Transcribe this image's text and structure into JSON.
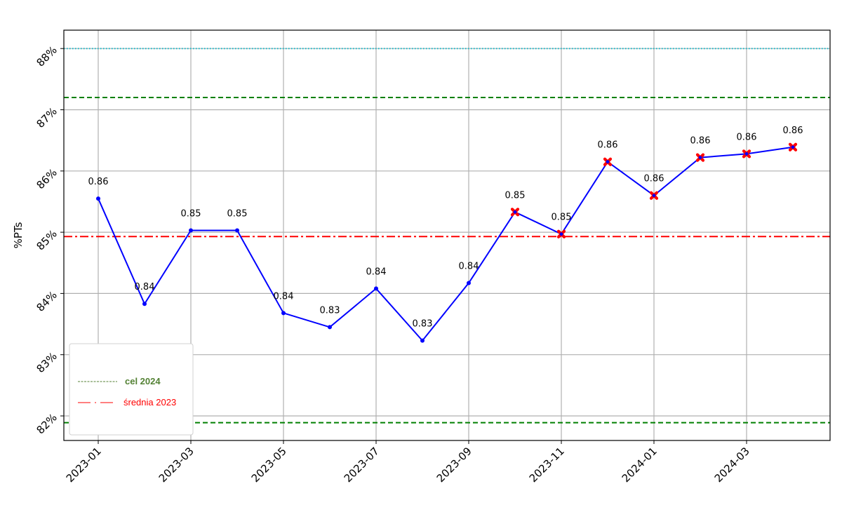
{
  "chart_data": {
    "type": "line",
    "ylabel": "%PTs",
    "ylim": [
      0.8175,
      0.8865
    ],
    "yticks": [
      {
        "value": 0.82,
        "label": "82%"
      },
      {
        "value": 0.83,
        "label": "83%"
      },
      {
        "value": 0.84,
        "label": "84%"
      },
      {
        "value": 0.85,
        "label": "85%"
      },
      {
        "value": 0.86,
        "label": "86%"
      },
      {
        "value": 0.87,
        "label": "87%"
      },
      {
        "value": 0.88,
        "label": "88%"
      }
    ],
    "xticks": [
      "2023-01",
      "2023-03",
      "2023-05",
      "2023-07",
      "2023-09",
      "2023-11",
      "2024-01",
      "2024-03"
    ],
    "grid": true,
    "series": [
      {
        "color": "#0000ff",
        "points": [
          {
            "x": "2023-01",
            "y": 0.8555,
            "label": "0.86",
            "marker": "dot"
          },
          {
            "x": "2023-02",
            "y": 0.8383,
            "label": "0.84",
            "marker": "dot"
          },
          {
            "x": "2023-03",
            "y": 0.8503,
            "label": "0.85",
            "marker": "dot"
          },
          {
            "x": "2023-04",
            "y": 0.8503,
            "label": "0.85",
            "marker": "dot"
          },
          {
            "x": "2023-05",
            "y": 0.8368,
            "label": "0.84",
            "marker": "dot"
          },
          {
            "x": "2023-06",
            "y": 0.8345,
            "label": "0.83",
            "marker": "dot"
          },
          {
            "x": "2023-07",
            "y": 0.8408,
            "label": "0.84",
            "marker": "dot"
          },
          {
            "x": "2023-08",
            "y": 0.8323,
            "label": "0.83",
            "marker": "dot"
          },
          {
            "x": "2023-09",
            "y": 0.8417,
            "label": "0.84",
            "marker": "dot"
          },
          {
            "x": "2023-10",
            "y": 0.8533,
            "label": "0.85",
            "marker": "x"
          },
          {
            "x": "2023-11",
            "y": 0.8497,
            "label": "0.85",
            "marker": "x"
          },
          {
            "x": "2023-12",
            "y": 0.8615,
            "label": "0.86",
            "marker": "x"
          },
          {
            "x": "2024-01",
            "y": 0.856,
            "label": "0.86",
            "marker": "x"
          },
          {
            "x": "2024-02",
            "y": 0.8622,
            "label": "0.86",
            "marker": "x"
          },
          {
            "x": "2024-03",
            "y": 0.8628,
            "label": "0.86",
            "marker": "x"
          },
          {
            "x": "2024-04",
            "y": 0.8639,
            "label": "0.86",
            "marker": "x"
          }
        ]
      }
    ],
    "reference_lines": [
      {
        "y": 0.88,
        "color": "#17becf",
        "style": "dotted"
      },
      {
        "y": 0.872,
        "color": "#008000",
        "style": "dashed"
      },
      {
        "y": 0.8493,
        "color": "#ff0000",
        "style": "dashdot"
      },
      {
        "y": 0.8189,
        "color": "#008000",
        "style": "dashed"
      }
    ],
    "legend": {
      "placement": "lower-left",
      "entries": [
        {
          "label": "cel 2024",
          "color": "#548235",
          "style": "dashed"
        },
        {
          "label": "średnia 2023",
          "color": "#ff0000",
          "style": "dashdot"
        }
      ]
    }
  }
}
